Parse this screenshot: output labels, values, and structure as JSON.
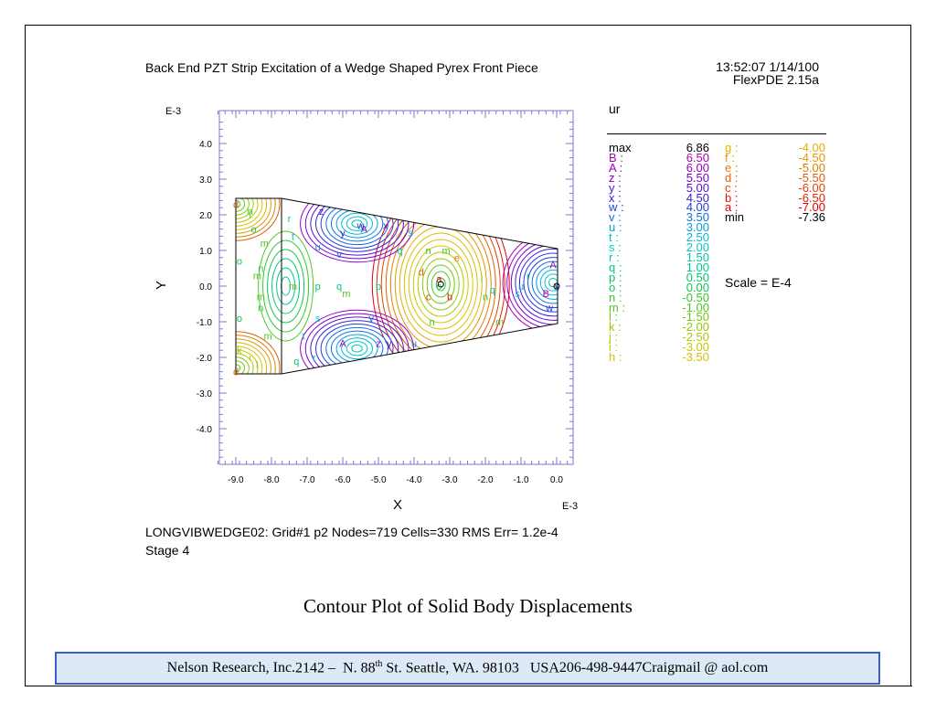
{
  "header": {
    "title": "Back End PZT Strip Excitation of a Wedge Shaped Pyrex Front Piece",
    "time": "13:52:07 1/14/100",
    "program": "FlexPDE 2.15a"
  },
  "chart_data": {
    "type": "contour",
    "title": "Back End PZT Strip Excitation of a Wedge Shaped Pyrex Front Piece",
    "xlabel": "X",
    "ylabel": "Y",
    "x_exponent_label": "E-3",
    "y_exponent_label": "E-3",
    "xlim": [
      -9.5,
      0.5
    ],
    "ylim": [
      -5.0,
      4.8
    ],
    "x_ticks": [
      "-9.0",
      "-8.0",
      "-7.0",
      "-6.0",
      "-5.0",
      "-4.0",
      "-3.0",
      "-2.0",
      "-1.0",
      "0.0"
    ],
    "y_ticks": [
      "4.0",
      "3.0",
      "2.0",
      "1.0",
      "0.0",
      "-1.0",
      "-2.0",
      "-3.0",
      "-4.0"
    ],
    "variable": "ur",
    "max_label": "max",
    "max_value": "6.86",
    "min_label": "min",
    "min_value": "-7.36",
    "scale": "Scale = E-4",
    "levels_col1": [
      {
        "label": "B :",
        "value": "6.50",
        "color": "#b000b0"
      },
      {
        "label": "A :",
        "value": "6.00",
        "color": "#9a00c8"
      },
      {
        "label": "z :",
        "value": "5.50",
        "color": "#7a00d0"
      },
      {
        "label": "y :",
        "value": "5.00",
        "color": "#5a10d8"
      },
      {
        "label": "x :",
        "value": "4.50",
        "color": "#3a20e0"
      },
      {
        "label": "w :",
        "value": "4.00",
        "color": "#2040e0"
      },
      {
        "label": "v :",
        "value": "3.50",
        "color": "#1070e0"
      },
      {
        "label": "u :",
        "value": "3.00",
        "color": "#00a0e0"
      },
      {
        "label": "t :",
        "value": "2.50",
        "color": "#00b8d8"
      },
      {
        "label": "s :",
        "value": "2.00",
        "color": "#00c8c8"
      },
      {
        "label": "r :",
        "value": "1.50",
        "color": "#00c8a8"
      },
      {
        "label": "q :",
        "value": "1.00",
        "color": "#00c890"
      },
      {
        "label": "p :",
        "value": "0.50",
        "color": "#00c870"
      },
      {
        "label": "o :",
        "value": "0.00",
        "color": "#10c850"
      },
      {
        "label": "n :",
        "value": "-0.50",
        "color": "#30c830"
      },
      {
        "label": "m :",
        "value": "-1.00",
        "color": "#50c820"
      },
      {
        "label": "l :",
        "value": "-1.50",
        "color": "#70c810"
      },
      {
        "label": "k :",
        "value": "-2.00",
        "color": "#90c800"
      },
      {
        "label": "j :",
        "value": "-2.50",
        "color": "#b0c800"
      },
      {
        "label": "i :",
        "value": "-3.00",
        "color": "#c8c800"
      },
      {
        "label": "h :",
        "value": "-3.50",
        "color": "#d8c000"
      }
    ],
    "levels_col2": [
      {
        "label": "g :",
        "value": "-4.00",
        "color": "#e0b000"
      },
      {
        "label": "f :",
        "value": "-4.50",
        "color": "#e09800"
      },
      {
        "label": "e :",
        "value": "-5.00",
        "color": "#e08000"
      },
      {
        "label": "d :",
        "value": "-5.50",
        "color": "#e06000"
      },
      {
        "label": "c :",
        "value": "-6.00",
        "color": "#e04000"
      },
      {
        "label": "b :",
        "value": "-6.50",
        "color": "#e02000"
      },
      {
        "label": "a :",
        "value": "-7.00",
        "color": "#e00000"
      }
    ]
  },
  "footer": {
    "run_info": "LONGVIBWEDGE02:  Grid#1  p2  Nodes=719 Cells=330 RMS Err= 1.2e-4",
    "stage": "Stage 4"
  },
  "caption": "Contour Plot of Solid Body Displacements",
  "banner": {
    "company": "Nelson Research, Inc.",
    "address_pre": "2142 –  N. 88",
    "address_sup": "th",
    "address_post": " St. Seattle, WA. 98103   USA",
    "phone": "206-498-9447",
    "email": "Craigmail @ aol.com"
  }
}
